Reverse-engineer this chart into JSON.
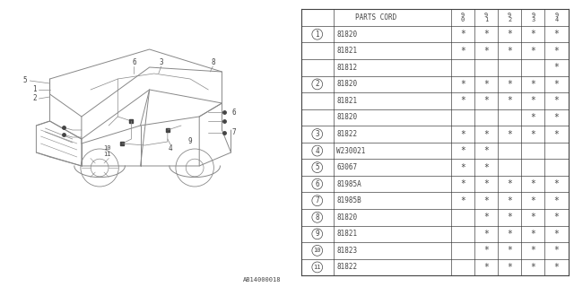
{
  "bg_color": "#ffffff",
  "header_row": [
    "PARTS CORD",
    "9\n0",
    "9\n1",
    "9\n2",
    "9\n3",
    "9\n4"
  ],
  "rows": [
    {
      "circle": "1",
      "part": "81820",
      "cols": [
        "*",
        "*",
        "*",
        "*",
        "*"
      ]
    },
    {
      "circle": "",
      "part": "81821",
      "cols": [
        "*",
        "*",
        "*",
        "*",
        "*"
      ]
    },
    {
      "circle": "",
      "part": "81812",
      "cols": [
        "",
        "",
        "",
        "",
        "*"
      ]
    },
    {
      "circle": "2",
      "part": "81820",
      "cols": [
        "*",
        "*",
        "*",
        "*",
        "*"
      ]
    },
    {
      "circle": "",
      "part": "81821",
      "cols": [
        "*",
        "*",
        "*",
        "*",
        "*"
      ]
    },
    {
      "circle": "",
      "part": "81820",
      "cols": [
        "",
        "",
        "",
        "*",
        "*"
      ]
    },
    {
      "circle": "3",
      "part": "81822",
      "cols": [
        "*",
        "*",
        "*",
        "*",
        "*"
      ]
    },
    {
      "circle": "4",
      "part": "W230021",
      "cols": [
        "*",
        "*",
        "",
        "",
        ""
      ]
    },
    {
      "circle": "5",
      "part": "63067",
      "cols": [
        "*",
        "*",
        "",
        "",
        ""
      ]
    },
    {
      "circle": "6",
      "part": "81985A",
      "cols": [
        "*",
        "*",
        "*",
        "*",
        "*"
      ]
    },
    {
      "circle": "7",
      "part": "81985B",
      "cols": [
        "*",
        "*",
        "*",
        "*",
        "*"
      ]
    },
    {
      "circle": "8",
      "part": "81820",
      "cols": [
        "",
        "*",
        "*",
        "*",
        "*"
      ]
    },
    {
      "circle": "9",
      "part": "81821",
      "cols": [
        "",
        "*",
        "*",
        "*",
        "*"
      ]
    },
    {
      "circle": "10",
      "part": "81823",
      "cols": [
        "",
        "*",
        "*",
        "*",
        "*"
      ]
    },
    {
      "circle": "11",
      "part": "81822",
      "cols": [
        "",
        "*",
        "*",
        "*",
        "*"
      ]
    }
  ],
  "watermark": "AB14000018",
  "line_color": "#888888",
  "text_color": "#444444",
  "circle_groups": {
    "1": [
      0,
      1
    ],
    "2": [
      2,
      3,
      4,
      5
    ]
  }
}
